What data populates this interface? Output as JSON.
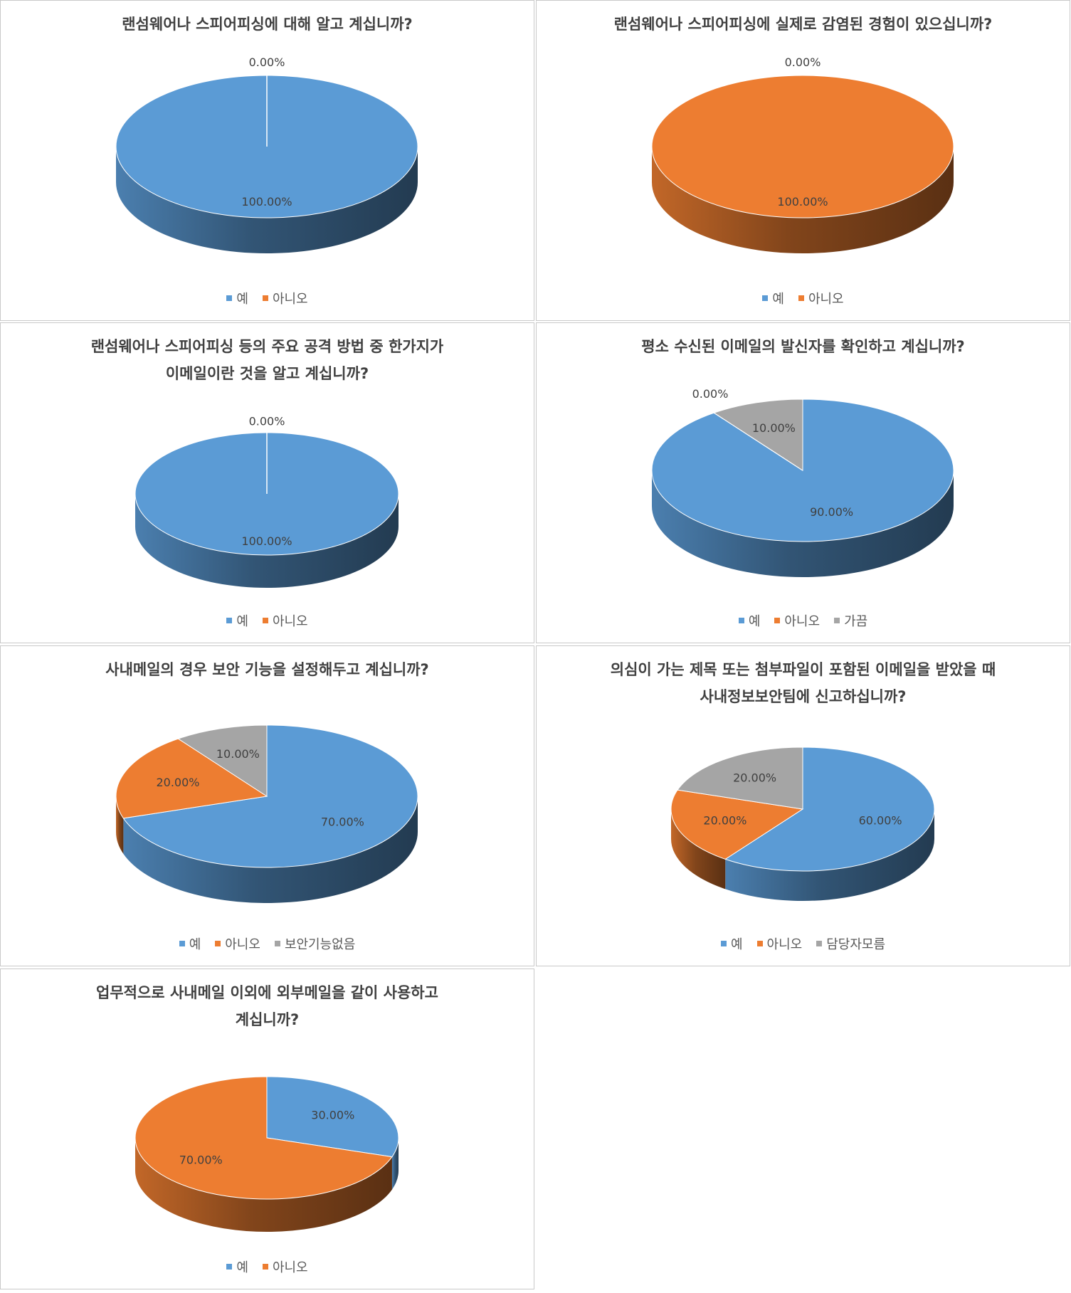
{
  "chart_data": [
    {
      "type": "pie",
      "title": "랜섬웨어나 스피어피싱에 대해 알고 계십니까?",
      "categories": [
        "예",
        "아니오"
      ],
      "values": [
        100,
        0
      ],
      "labels": [
        "100.00%",
        "0.00%"
      ],
      "colors": [
        "#5b9bd5",
        "#ed7d31"
      ],
      "legend": "bottom"
    },
    {
      "type": "pie",
      "title": "랜섬웨어나 스피어피싱에 실제로 감염된 경험이 있으십니까?",
      "categories": [
        "예",
        "아니오"
      ],
      "values": [
        0,
        100
      ],
      "labels": [
        "0.00%",
        "100.00%"
      ],
      "colors": [
        "#5b9bd5",
        "#ed7d31"
      ],
      "legend": "bottom"
    },
    {
      "type": "pie",
      "title": "랜섬웨어나 스피어피싱 등의 주요 공격 방법 중 한가지가\n이메일이란 것을 알고 계십니까?",
      "categories": [
        "예",
        "아니오"
      ],
      "values": [
        100,
        0
      ],
      "labels": [
        "100.00%",
        "0.00%"
      ],
      "colors": [
        "#5b9bd5",
        "#ed7d31"
      ],
      "legend": "bottom"
    },
    {
      "type": "pie",
      "title": "평소 수신된 이메일의 발신자를 확인하고 계십니까?",
      "categories": [
        "예",
        "아니오",
        "가끔"
      ],
      "values": [
        90,
        0,
        10
      ],
      "labels": [
        "90.00%",
        "0.00%",
        "10.00%"
      ],
      "colors": [
        "#5b9bd5",
        "#ed7d31",
        "#a5a5a5"
      ],
      "legend": "bottom"
    },
    {
      "type": "pie",
      "title": "사내메일의 경우 보안 기능을 설정해두고 계십니까?",
      "categories": [
        "예",
        "아니오",
        "보안기능없음"
      ],
      "values": [
        70,
        20,
        10
      ],
      "labels": [
        "70.00%",
        "20.00%",
        "10.00%"
      ],
      "colors": [
        "#5b9bd5",
        "#ed7d31",
        "#a5a5a5"
      ],
      "legend": "bottom"
    },
    {
      "type": "pie",
      "title": "의심이 가는 제목 또는 첨부파일이 포함된 이메일을 받았을 때\n사내정보보안팀에 신고하십니까?",
      "categories": [
        "예",
        "아니오",
        "담당자모름"
      ],
      "values": [
        60,
        20,
        20
      ],
      "labels": [
        "60.00%",
        "20.00%",
        "20.00%"
      ],
      "colors": [
        "#5b9bd5",
        "#ed7d31",
        "#a5a5a5"
      ],
      "legend": "bottom"
    },
    {
      "type": "pie",
      "title": "업무적으로 사내메일 이외에 외부메일을 같이 사용하고\n계십니까?",
      "categories": [
        "예",
        "아니오"
      ],
      "values": [
        30,
        70
      ],
      "labels": [
        "30.00%",
        "70.00%"
      ],
      "colors": [
        "#5b9bd5",
        "#ed7d31"
      ],
      "legend": "bottom"
    }
  ]
}
